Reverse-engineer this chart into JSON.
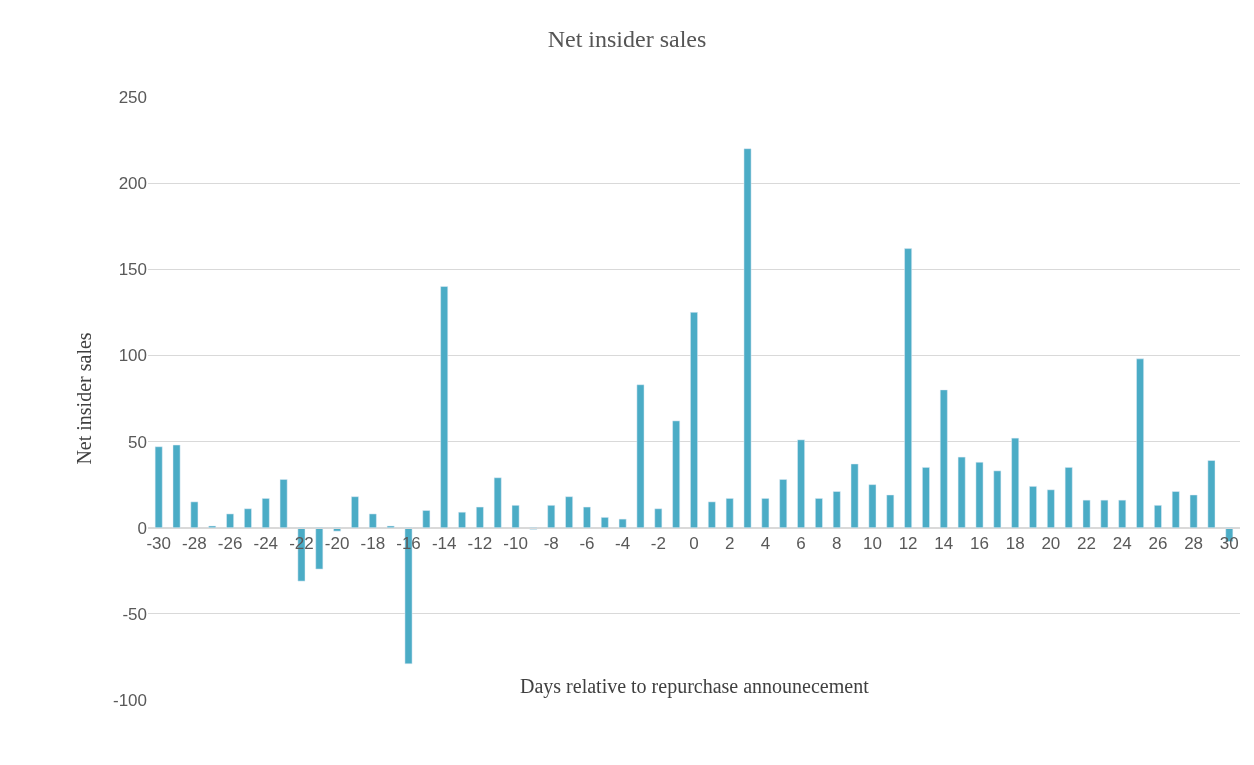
{
  "chart_data": {
    "type": "bar",
    "title": "Net insider sales",
    "xlabel": "Days relative to repurchase announecement",
    "ylabel": "Net insider sales",
    "x": [
      -30,
      -29,
      -28,
      -27,
      -26,
      -25,
      -24,
      -23,
      -22,
      -21,
      -20,
      -19,
      -18,
      -17,
      -16,
      -15,
      -14,
      -13,
      -12,
      -11,
      -10,
      -9,
      -8,
      -7,
      -6,
      -5,
      -4,
      -3,
      -2,
      -1,
      0,
      1,
      2,
      3,
      4,
      5,
      6,
      7,
      8,
      9,
      10,
      11,
      12,
      13,
      14,
      15,
      16,
      17,
      18,
      19,
      20,
      21,
      22,
      23,
      24,
      25,
      26,
      27,
      28,
      29,
      30
    ],
    "values": [
      47,
      48,
      15,
      1,
      8,
      11,
      17,
      28,
      -31,
      -24,
      -2,
      18,
      8,
      1,
      -79,
      10,
      140,
      9,
      12,
      29,
      13,
      -1,
      13,
      18,
      12,
      6,
      5,
      83,
      11,
      62,
      125,
      15,
      17,
      220,
      17,
      28,
      51,
      17,
      21,
      37,
      25,
      19,
      162,
      35,
      80,
      41,
      38,
      33,
      52,
      24,
      22,
      35,
      16,
      16,
      16,
      98,
      13,
      21,
      19,
      39,
      -8
    ],
    "color": "#4bacc6",
    "xlim": [
      -30.6,
      30.6
    ],
    "xticks": [
      -30,
      -28,
      -26,
      -24,
      -22,
      -20,
      -18,
      -16,
      -14,
      -12,
      -10,
      -8,
      -6,
      -4,
      -2,
      0,
      2,
      4,
      6,
      8,
      10,
      12,
      14,
      16,
      18,
      20,
      22,
      24,
      26,
      28,
      30
    ],
    "ylim": [
      -100,
      250
    ],
    "yticks": [
      -100,
      -50,
      0,
      50,
      100,
      150,
      200,
      250
    ],
    "grid": "y"
  }
}
